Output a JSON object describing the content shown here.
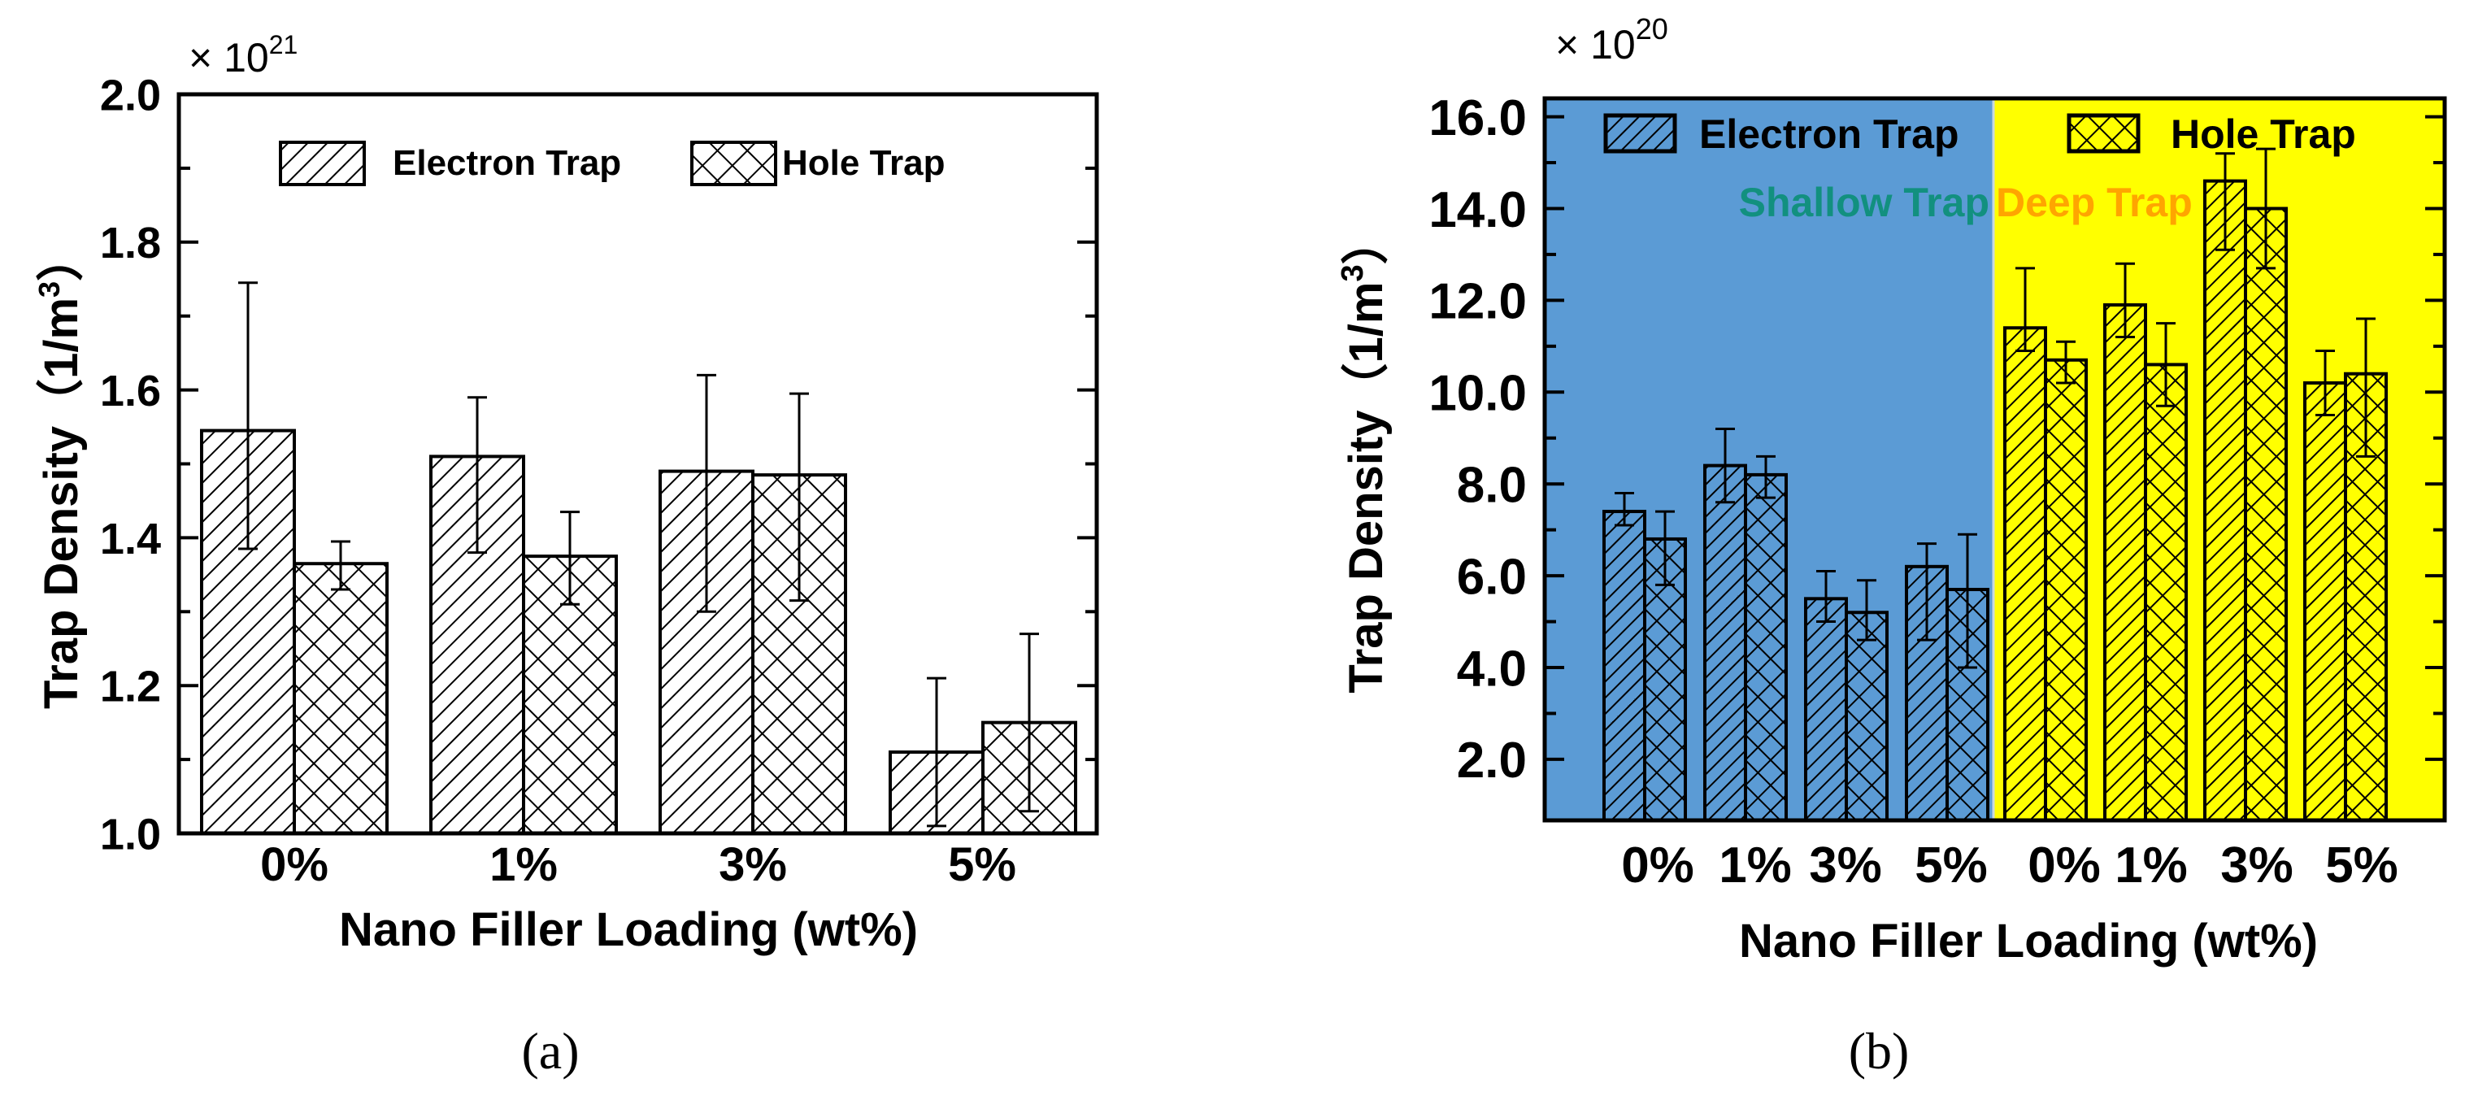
{
  "chart_data": [
    {
      "type": "bar",
      "panel_label": "(a)",
      "multiplier": "× 10",
      "multiplier_exp": "21",
      "xlabel": "Nano Filler Loading (wt%)",
      "ylabel": "Trap Density（1/m",
      "ylabel_sup": "3",
      "ylabel_end": "）",
      "ylim": [
        1.0,
        2.0
      ],
      "yticks": [
        "1.0",
        "1.2",
        "1.4",
        "1.6",
        "1.8",
        "2.0"
      ],
      "categories": [
        "0%",
        "1%",
        "3%",
        "5%"
      ],
      "legend": [
        "Electron Trap",
        "Hole Trap"
      ],
      "legend_position": "top-center",
      "series": [
        {
          "name": "Electron Trap",
          "pattern": "diagonal",
          "values": [
            1.545,
            1.51,
            1.49,
            1.11
          ],
          "err_low": [
            1.385,
            1.38,
            1.3,
            1.01
          ],
          "err_high": [
            1.745,
            1.59,
            1.62,
            1.21
          ]
        },
        {
          "name": "Hole Trap",
          "pattern": "crosshatch",
          "values": [
            1.365,
            1.375,
            1.485,
            1.15
          ],
          "err_low": [
            1.33,
            1.31,
            1.315,
            1.03
          ],
          "err_high": [
            1.395,
            1.435,
            1.595,
            1.27
          ]
        }
      ],
      "colors": {
        "bar_fill": "#ffffff",
        "background": "#ffffff"
      }
    },
    {
      "type": "bar",
      "panel_label": "(b)",
      "multiplier": "× 10",
      "multiplier_exp": "20",
      "xlabel": "Nano Filler Loading (wt%)",
      "ylabel": "Trap Density（1/m",
      "ylabel_sup": "3",
      "ylabel_end": "）",
      "ylim": [
        0.67,
        16.4
      ],
      "yticks": [
        "2.0",
        "4.0",
        "6.0",
        "8.0",
        "10.0",
        "12.0",
        "14.0",
        "16.0"
      ],
      "categories": [
        "0%",
        "1%",
        "3%",
        "5%",
        "0%",
        "1%",
        "3%",
        "5%"
      ],
      "regions": [
        {
          "label": "Shallow Trap",
          "categories": [
            0,
            1,
            2,
            3
          ],
          "color": "#5b9bd5",
          "label_color": "#12907f"
        },
        {
          "label": "Deep Trap",
          "categories": [
            4,
            5,
            6,
            7
          ],
          "color": "#ffff00",
          "label_color": "#ffa500"
        }
      ],
      "legend": [
        "Electron Trap",
        "Hole Trap"
      ],
      "legend_position": "top",
      "series": [
        {
          "name": "Electron Trap",
          "pattern": "diagonal",
          "values": [
            7.4,
            8.4,
            5.5,
            6.2,
            11.4,
            11.9,
            14.6,
            10.2
          ],
          "err_low": [
            7.1,
            7.6,
            5.0,
            4.6,
            10.9,
            11.2,
            13.1,
            9.5
          ],
          "err_high": [
            7.8,
            9.2,
            6.1,
            6.7,
            12.7,
            12.8,
            15.2,
            10.9
          ]
        },
        {
          "name": "Hole Trap",
          "pattern": "crosshatch",
          "values": [
            6.8,
            8.2,
            5.2,
            5.7,
            10.7,
            10.6,
            14.0,
            10.4
          ],
          "err_low": [
            5.8,
            7.7,
            4.6,
            4.0,
            10.2,
            9.7,
            12.7,
            8.6
          ],
          "err_high": [
            7.4,
            8.6,
            5.9,
            6.9,
            11.1,
            11.5,
            15.3,
            11.6
          ]
        }
      ]
    }
  ]
}
